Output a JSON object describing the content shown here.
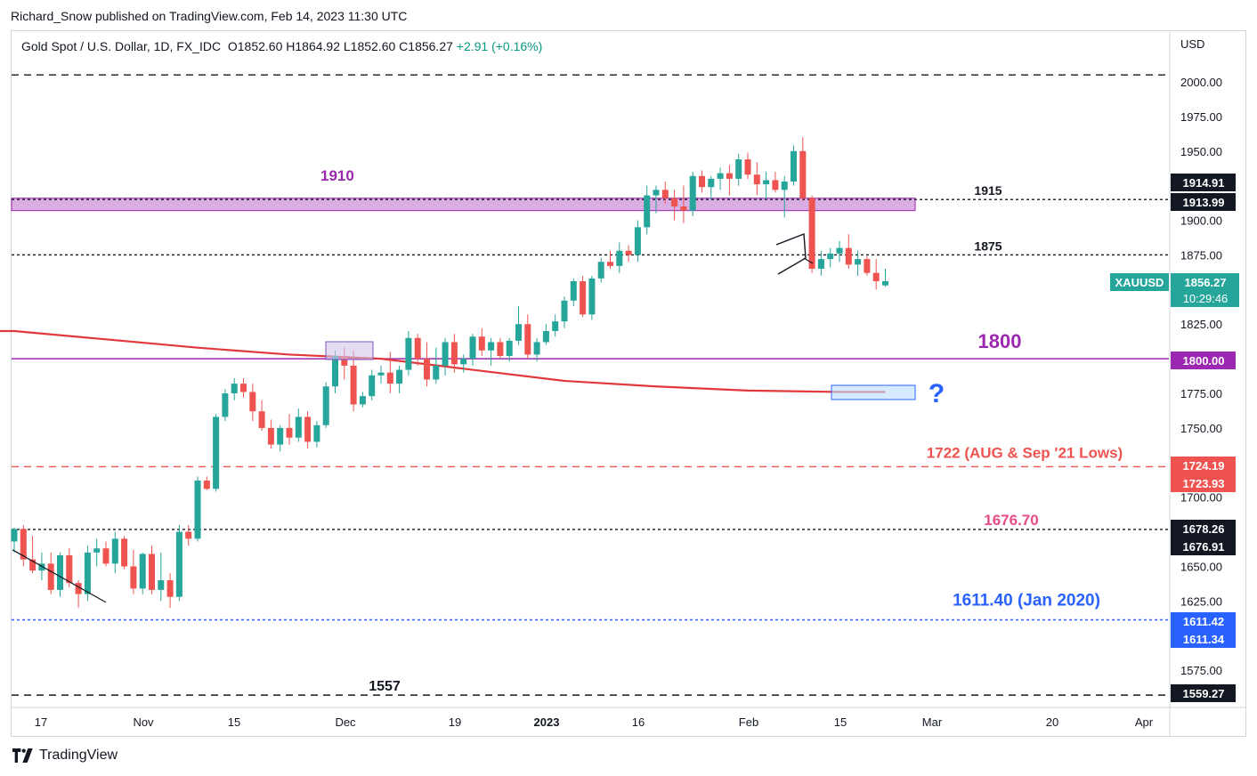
{
  "header": {
    "publisher": "Richard_Snow published on TradingView.com, Feb 14, 2023 11:30 UTC"
  },
  "legend": {
    "symbol": "Gold Spot / U.S. Dollar, 1D, FX_IDC",
    "open": "O1852.60",
    "high": "H1864.92",
    "low": "L1852.60",
    "close": "C1856.27",
    "change": "+2.91 (+0.16%)"
  },
  "footer": {
    "brand": "TradingView"
  },
  "colors": {
    "up": "#26a69a",
    "down": "#ef5350",
    "purple": "#9c27b0",
    "ma": "#e0383b",
    "blue": "#2962ff",
    "pink": "#e84c88",
    "label_dark": "#131722"
  },
  "chart_data": {
    "type": "candlestick",
    "symbol": "XAUUSD",
    "currency": "USD",
    "ylim": [
      1530,
      2020
    ],
    "y_ticks": [
      1575,
      1600,
      1625,
      1650,
      1675,
      1700,
      1725,
      1750,
      1775,
      1800,
      1825,
      1850,
      1875,
      1900,
      1925,
      1950,
      1975,
      2000
    ],
    "y_tick_labels": [
      "1575.00",
      "1600.00",
      "1625.00",
      "1650.00",
      "1675.00",
      "1700.00",
      "1725.00",
      "1750.00",
      "1775.00",
      "1800.00",
      "1825.00",
      "1850.00",
      "1875.00",
      "1900.00",
      "1925.00",
      "1950.00",
      "1975.00",
      "2000.00"
    ],
    "x_labels": [
      "17",
      "Nov",
      "15",
      "Dec",
      "19",
      "2023",
      "16",
      "Feb",
      "15",
      "Mar",
      "20",
      "Apr"
    ],
    "grid": false,
    "candles": [
      [
        1668,
        1678,
        1660,
        1677
      ],
      [
        1677,
        1680,
        1650,
        1655
      ],
      [
        1655,
        1672,
        1645,
        1647
      ],
      [
        1647,
        1660,
        1640,
        1652
      ],
      [
        1652,
        1660,
        1630,
        1633
      ],
      [
        1633,
        1660,
        1628,
        1658
      ],
      [
        1658,
        1663,
        1635,
        1638
      ],
      [
        1638,
        1640,
        1620,
        1630
      ],
      [
        1630,
        1665,
        1625,
        1660
      ],
      [
        1660,
        1670,
        1650,
        1663
      ],
      [
        1663,
        1668,
        1650,
        1652
      ],
      [
        1652,
        1675,
        1645,
        1670
      ],
      [
        1670,
        1672,
        1648,
        1650
      ],
      [
        1650,
        1662,
        1630,
        1634
      ],
      [
        1634,
        1660,
        1630,
        1659
      ],
      [
        1659,
        1665,
        1630,
        1633
      ],
      [
        1633,
        1660,
        1625,
        1640
      ],
      [
        1640,
        1645,
        1620,
        1628
      ],
      [
        1628,
        1680,
        1625,
        1675
      ],
      [
        1675,
        1680,
        1665,
        1670
      ],
      [
        1670,
        1715,
        1668,
        1712
      ],
      [
        1712,
        1715,
        1705,
        1706
      ],
      [
        1706,
        1760,
        1704,
        1758
      ],
      [
        1758,
        1778,
        1755,
        1775
      ],
      [
        1775,
        1786,
        1770,
        1782
      ],
      [
        1782,
        1786,
        1772,
        1776
      ],
      [
        1776,
        1782,
        1755,
        1762
      ],
      [
        1762,
        1770,
        1748,
        1750
      ],
      [
        1750,
        1756,
        1735,
        1738
      ],
      [
        1738,
        1752,
        1733,
        1750
      ],
      [
        1750,
        1760,
        1738,
        1743
      ],
      [
        1743,
        1764,
        1740,
        1758
      ],
      [
        1758,
        1762,
        1735,
        1740
      ],
      [
        1740,
        1755,
        1736,
        1752
      ],
      [
        1752,
        1783,
        1750,
        1780
      ],
      [
        1780,
        1806,
        1775,
        1802
      ],
      [
        1802,
        1808,
        1785,
        1795
      ],
      [
        1795,
        1806,
        1762,
        1767
      ],
      [
        1767,
        1776,
        1765,
        1773
      ],
      [
        1773,
        1792,
        1770,
        1788
      ],
      [
        1788,
        1795,
        1782,
        1790
      ],
      [
        1790,
        1805,
        1775,
        1782
      ],
      [
        1782,
        1795,
        1775,
        1792
      ],
      [
        1792,
        1820,
        1788,
        1815
      ],
      [
        1815,
        1818,
        1795,
        1800
      ],
      [
        1800,
        1812,
        1780,
        1785
      ],
      [
        1785,
        1808,
        1782,
        1795
      ],
      [
        1795,
        1815,
        1788,
        1812
      ],
      [
        1812,
        1818,
        1790,
        1796
      ],
      [
        1796,
        1803,
        1790,
        1800
      ],
      [
        1800,
        1818,
        1795,
        1816
      ],
      [
        1816,
        1822,
        1802,
        1806
      ],
      [
        1806,
        1815,
        1795,
        1812
      ],
      [
        1812,
        1815,
        1800,
        1802
      ],
      [
        1802,
        1815,
        1798,
        1813
      ],
      [
        1813,
        1838,
        1810,
        1825
      ],
      [
        1825,
        1832,
        1800,
        1803
      ],
      [
        1803,
        1815,
        1798,
        1812
      ],
      [
        1812,
        1825,
        1810,
        1820
      ],
      [
        1820,
        1832,
        1816,
        1827
      ],
      [
        1827,
        1845,
        1822,
        1842
      ],
      [
        1842,
        1858,
        1838,
        1856
      ],
      [
        1856,
        1860,
        1830,
        1832
      ],
      [
        1832,
        1860,
        1828,
        1858
      ],
      [
        1858,
        1873,
        1855,
        1870
      ],
      [
        1870,
        1878,
        1865,
        1867
      ],
      [
        1867,
        1884,
        1862,
        1878
      ],
      [
        1878,
        1882,
        1870,
        1875
      ],
      [
        1875,
        1900,
        1870,
        1895
      ],
      [
        1895,
        1925,
        1890,
        1918
      ],
      [
        1918,
        1925,
        1905,
        1922
      ],
      [
        1922,
        1928,
        1912,
        1916
      ],
      [
        1916,
        1922,
        1900,
        1910
      ],
      [
        1910,
        1925,
        1898,
        1907
      ],
      [
        1907,
        1935,
        1903,
        1932
      ],
      [
        1932,
        1936,
        1920,
        1924
      ],
      [
        1924,
        1932,
        1915,
        1930
      ],
      [
        1930,
        1938,
        1922,
        1934
      ],
      [
        1934,
        1940,
        1918,
        1930
      ],
      [
        1930,
        1948,
        1925,
        1944
      ],
      [
        1944,
        1949,
        1930,
        1933
      ],
      [
        1933,
        1942,
        1918,
        1926
      ],
      [
        1926,
        1935,
        1915,
        1929
      ],
      [
        1929,
        1935,
        1920,
        1922
      ],
      [
        1922,
        1932,
        1902,
        1928
      ],
      [
        1928,
        1954,
        1925,
        1950
      ],
      [
        1950,
        1960,
        1914,
        1916
      ],
      [
        1916,
        1918,
        1862,
        1865
      ],
      [
        1865,
        1878,
        1860,
        1872
      ],
      [
        1872,
        1880,
        1866,
        1876
      ],
      [
        1876,
        1885,
        1870,
        1880
      ],
      [
        1880,
        1890,
        1865,
        1868
      ],
      [
        1868,
        1878,
        1860,
        1872
      ],
      [
        1872,
        1874,
        1860,
        1862
      ],
      [
        1862,
        1872,
        1850,
        1856
      ],
      [
        1853,
        1865,
        1852,
        1856
      ]
    ],
    "moving_average_200": {
      "color": "#e0383b",
      "points": [
        [
          0,
          1820
        ],
        [
          10,
          1814
        ],
        [
          20,
          1808
        ],
        [
          30,
          1803
        ],
        [
          40,
          1800
        ],
        [
          50,
          1792
        ],
        [
          60,
          1784
        ],
        [
          70,
          1780
        ],
        [
          80,
          1777
        ],
        [
          90,
          1776
        ],
        [
          95,
          1776
        ]
      ]
    },
    "levels": [
      {
        "price": 2005,
        "style": "dashed",
        "color": "#131722",
        "label": ""
      },
      {
        "price": 1915,
        "style": "dotted",
        "color": "#131722",
        "label": "1915"
      },
      {
        "price": 1875,
        "style": "dotted",
        "color": "#131722",
        "label": "1875"
      },
      {
        "price": 1800,
        "style": "solid",
        "color": "#9c27b0",
        "label": "1800"
      },
      {
        "price": 1722,
        "style": "dashed",
        "color": "#ef5350",
        "label": "1722 (AUG & Sep '21 Lows)"
      },
      {
        "price": 1676.7,
        "style": "dotted",
        "color": "#131722",
        "label": "1676.70"
      },
      {
        "price": 1611.4,
        "style": "dotted",
        "color": "#2962ff",
        "label": "1611.40 (Jan 2020)"
      },
      {
        "price": 1557,
        "style": "dashed",
        "color": "#131722",
        "label": "1557"
      }
    ],
    "zone_1910": {
      "top": 1916,
      "bottom": 1907,
      "label": "1910"
    },
    "annotations": {
      "question": "?"
    },
    "price_tags": [
      {
        "text": "1914.91",
        "bg": "#131722",
        "fg": "#ffffff"
      },
      {
        "text": "1913.99",
        "bg": "#131722",
        "fg": "#ffffff"
      },
      {
        "text": "1800.00",
        "bg": "#9c27b0",
        "fg": "#ffffff"
      },
      {
        "text": "1724.19",
        "bg": "#ef5350",
        "fg": "#ffffff"
      },
      {
        "text": "1723.93",
        "bg": "#ef5350",
        "fg": "#ffffff"
      },
      {
        "text": "1678.26",
        "bg": "#131722",
        "fg": "#ffffff"
      },
      {
        "text": "1676.91",
        "bg": "#131722",
        "fg": "#ffffff"
      },
      {
        "text": "1611.42",
        "bg": "#2962ff",
        "fg": "#ffffff"
      },
      {
        "text": "1611.34",
        "bg": "#2962ff",
        "fg": "#ffffff"
      },
      {
        "text": "1559.27",
        "bg": "#131722",
        "fg": "#ffffff"
      }
    ],
    "last_price": {
      "symbol": "XAUUSD",
      "value": "1856.27",
      "countdown": "10:29:46",
      "bg": "#26a69a"
    }
  }
}
